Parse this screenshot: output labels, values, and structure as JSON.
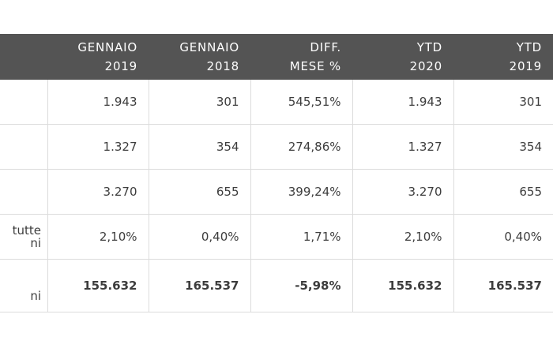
{
  "header": {
    "columns": [
      {
        "line1": "",
        "line2": ""
      },
      {
        "line1": "GENNAIO",
        "line2": "2019"
      },
      {
        "line1": "GENNAIO",
        "line2": "2018"
      },
      {
        "line1": "DIFF.",
        "line2": "MESE %"
      },
      {
        "line1": "YTD",
        "line2": "2020"
      },
      {
        "line1": "YTD",
        "line2": "2019"
      }
    ]
  },
  "rows": [
    {
      "label1": "",
      "label2": "",
      "cells": [
        "1.943",
        "301",
        "545,51%",
        "1.943",
        "301"
      ]
    },
    {
      "label1": "",
      "label2": "",
      "cells": [
        "1.327",
        "354",
        "274,86%",
        "1.327",
        "354"
      ]
    },
    {
      "label1": "",
      "label2": "",
      "cells": [
        "3.270",
        "655",
        "399,24%",
        "3.270",
        "655"
      ]
    },
    {
      "label1": "tutte",
      "label2": "ni",
      "cells": [
        "2,10%",
        "0,40%",
        "1,71%",
        "2,10%",
        "0,40%"
      ]
    },
    {
      "label1": "",
      "label2": "ni",
      "cells": [
        "155.632",
        "165.537",
        "-5,98%",
        "155.632",
        "165.537"
      ]
    }
  ]
}
